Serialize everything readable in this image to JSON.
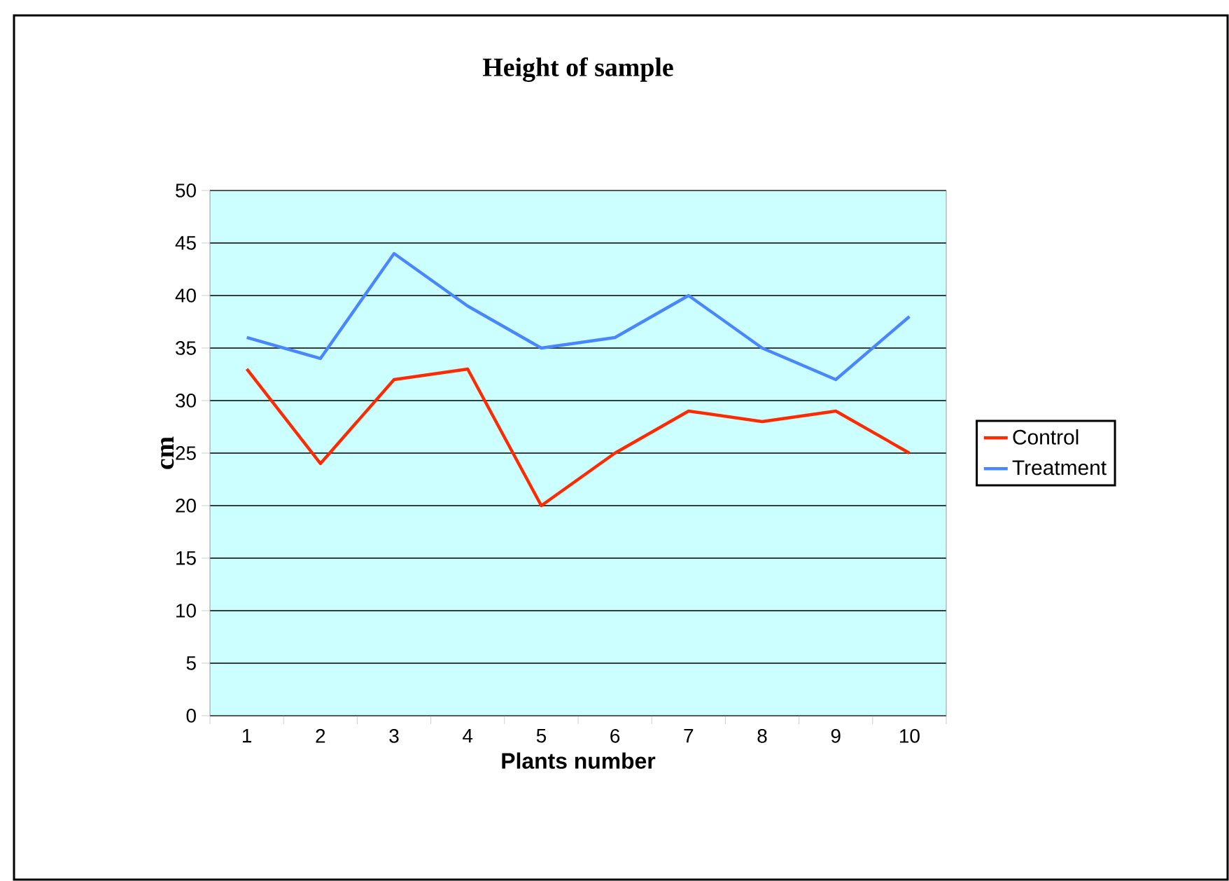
{
  "chart_data": {
    "type": "line",
    "title": "Height of sample",
    "xlabel": "Plants number",
    "ylabel": "cm",
    "categories": [
      "1",
      "2",
      "3",
      "4",
      "5",
      "6",
      "7",
      "8",
      "9",
      "10"
    ],
    "series": [
      {
        "name": "Control",
        "color": "#ff2a00",
        "values": [
          33,
          24,
          32,
          33,
          20,
          25,
          29,
          28,
          29,
          25
        ]
      },
      {
        "name": "Treatment",
        "color": "#4a86ff",
        "values": [
          36,
          34,
          44,
          39,
          35,
          36,
          40,
          35,
          32,
          38
        ]
      }
    ],
    "ylim": [
      0,
      50
    ],
    "yticks": [
      0,
      5,
      10,
      15,
      20,
      25,
      30,
      35,
      40,
      45,
      50
    ],
    "grid": "y",
    "legend": "right",
    "marker": "none",
    "line_style": "solid"
  }
}
